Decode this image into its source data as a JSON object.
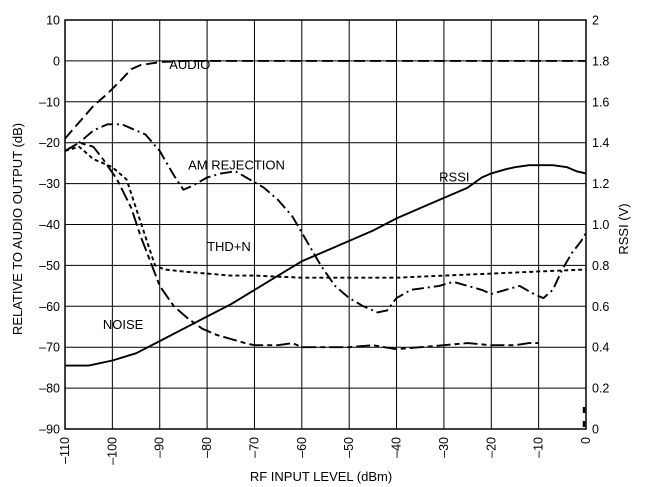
{
  "chart_data": {
    "type": "line",
    "xlabel": "RF INPUT LEVEL (dBm)",
    "ylabel": "RELATIVE TO AUDIO OUTPUT (dB)",
    "y2label": "RSSI (V)",
    "xlim": [
      -110,
      0
    ],
    "ylim": [
      -90,
      10
    ],
    "y2lim": [
      0,
      2
    ],
    "grid": true,
    "x_ticks": [
      "–110",
      "–100",
      "–90",
      "–80",
      "–70",
      "–60",
      "–50",
      "–40",
      "–30",
      "–20",
      "–10",
      "0"
    ],
    "y_ticks": [
      "10",
      "0",
      "–10",
      "–20",
      "–30",
      "–40",
      "–50",
      "–60",
      "–70",
      "–80",
      "–90"
    ],
    "y2_ticks": [
      "2",
      "1.8",
      "1.6",
      "1.4",
      "1.2",
      "1.0",
      "0.8",
      "0.6",
      "0.4",
      "0.2",
      "0"
    ],
    "series": [
      {
        "name": "AUDIO",
        "axis": "left",
        "style": "long-dash",
        "label_at": [
          -88,
          -2
        ],
        "points": [
          [
            -110,
            -19
          ],
          [
            -107,
            -15
          ],
          [
            -104,
            -11
          ],
          [
            -101,
            -8
          ],
          [
            -98,
            -4.5
          ],
          [
            -96,
            -2
          ],
          [
            -94,
            -1
          ],
          [
            -90,
            -0.3
          ],
          [
            -85,
            0
          ],
          [
            -80,
            0
          ],
          [
            -60,
            0
          ],
          [
            -50,
            0
          ],
          [
            -40,
            0
          ],
          [
            -20,
            0
          ],
          [
            -10,
            0
          ],
          [
            0,
            0
          ]
        ]
      },
      {
        "name": "AM REJECTION",
        "axis": "left",
        "style": "dash-dot",
        "label_at": [
          -84,
          -26.5
        ],
        "points": [
          [
            -110,
            -22
          ],
          [
            -107,
            -20
          ],
          [
            -104,
            -17
          ],
          [
            -101,
            -15.5
          ],
          [
            -98,
            -15.5
          ],
          [
            -95,
            -17
          ],
          [
            -93,
            -18
          ],
          [
            -90,
            -22
          ],
          [
            -87,
            -28
          ],
          [
            -85,
            -31.5
          ],
          [
            -83,
            -30.5
          ],
          [
            -80,
            -28.5
          ],
          [
            -77,
            -27.5
          ],
          [
            -74,
            -27
          ],
          [
            -71,
            -29
          ],
          [
            -68,
            -31
          ],
          [
            -65,
            -34
          ],
          [
            -62,
            -38
          ],
          [
            -59,
            -44
          ],
          [
            -56,
            -50
          ],
          [
            -53,
            -55
          ],
          [
            -50,
            -58
          ],
          [
            -47,
            -60
          ],
          [
            -44,
            -61.5
          ],
          [
            -42,
            -61
          ],
          [
            -40,
            -58
          ],
          [
            -37,
            -56
          ],
          [
            -34,
            -55.5
          ],
          [
            -31,
            -55
          ],
          [
            -28,
            -54
          ],
          [
            -25,
            -55
          ],
          [
            -22,
            -56
          ],
          [
            -20,
            -57
          ],
          [
            -17,
            -56
          ],
          [
            -14,
            -55
          ],
          [
            -11,
            -57
          ],
          [
            -9,
            -58
          ],
          [
            -7,
            -56
          ],
          [
            -5,
            -51
          ],
          [
            -3,
            -47
          ],
          [
            -1,
            -44
          ],
          [
            0,
            -42
          ]
        ]
      },
      {
        "name": "RSSI",
        "axis": "right",
        "style": "solid",
        "label_at": [
          -31,
          -29.5
        ],
        "points": [
          [
            -110,
            0.31
          ],
          [
            -105,
            0.31
          ],
          [
            -100,
            0.335
          ],
          [
            -95,
            0.37
          ],
          [
            -90,
            0.43
          ],
          [
            -85,
            0.49
          ],
          [
            -80,
            0.55
          ],
          [
            -75,
            0.61
          ],
          [
            -70,
            0.68
          ],
          [
            -65,
            0.75
          ],
          [
            -60,
            0.82
          ],
          [
            -55,
            0.87
          ],
          [
            -50,
            0.92
          ],
          [
            -45,
            0.97
          ],
          [
            -40,
            1.03
          ],
          [
            -35,
            1.08
          ],
          [
            -30,
            1.13
          ],
          [
            -25,
            1.18
          ],
          [
            -22,
            1.23
          ],
          [
            -20,
            1.25
          ],
          [
            -17,
            1.27
          ],
          [
            -15,
            1.28
          ],
          [
            -12,
            1.29
          ],
          [
            -10,
            1.29
          ],
          [
            -7,
            1.29
          ],
          [
            -4,
            1.28
          ],
          [
            -2,
            1.26
          ],
          [
            0,
            1.25
          ]
        ]
      },
      {
        "name": "THD+N",
        "axis": "left",
        "style": "short-dash",
        "label_at": [
          -80,
          -46.5
        ],
        "points": [
          [
            -110,
            -22
          ],
          [
            -107,
            -21
          ],
          [
            -104,
            -24
          ],
          [
            -100,
            -26
          ],
          [
            -97,
            -29
          ],
          [
            -95,
            -36
          ],
          [
            -93,
            -43
          ],
          [
            -91,
            -50
          ],
          [
            -89,
            -51
          ],
          [
            -85,
            -51.5
          ],
          [
            -80,
            -52
          ],
          [
            -75,
            -52.5
          ],
          [
            -70,
            -52.5
          ],
          [
            -60,
            -53
          ],
          [
            -50,
            -53
          ],
          [
            -40,
            -53
          ],
          [
            -30,
            -52.5
          ],
          [
            -20,
            -52
          ],
          [
            -10,
            -51.5
          ],
          [
            0,
            -51
          ]
        ]
      },
      {
        "name": "NOISE",
        "axis": "left",
        "style": "long-short-dash",
        "label_at": [
          -102,
          -65.5
        ],
        "points": [
          [
            -110,
            -22
          ],
          [
            -107,
            -20
          ],
          [
            -104,
            -21
          ],
          [
            -102,
            -24
          ],
          [
            -99,
            -29
          ],
          [
            -96,
            -36
          ],
          [
            -94,
            -43
          ],
          [
            -92,
            -49
          ],
          [
            -90,
            -55
          ],
          [
            -87,
            -60
          ],
          [
            -84,
            -63
          ],
          [
            -81,
            -65.5
          ],
          [
            -78,
            -67
          ],
          [
            -75,
            -68
          ],
          [
            -72,
            -69
          ],
          [
            -70,
            -69.5
          ],
          [
            -65,
            -69.5
          ],
          [
            -62,
            -69
          ],
          [
            -60,
            -70
          ],
          [
            -55,
            -70
          ],
          [
            -50,
            -70
          ],
          [
            -45,
            -69.5
          ],
          [
            -40,
            -70.5
          ],
          [
            -35,
            -70
          ],
          [
            -30,
            -69.5
          ],
          [
            -25,
            -69
          ],
          [
            -20,
            -69.5
          ],
          [
            -15,
            -69.5
          ],
          [
            -12,
            -69
          ],
          [
            -10,
            -69
          ]
        ]
      }
    ]
  }
}
